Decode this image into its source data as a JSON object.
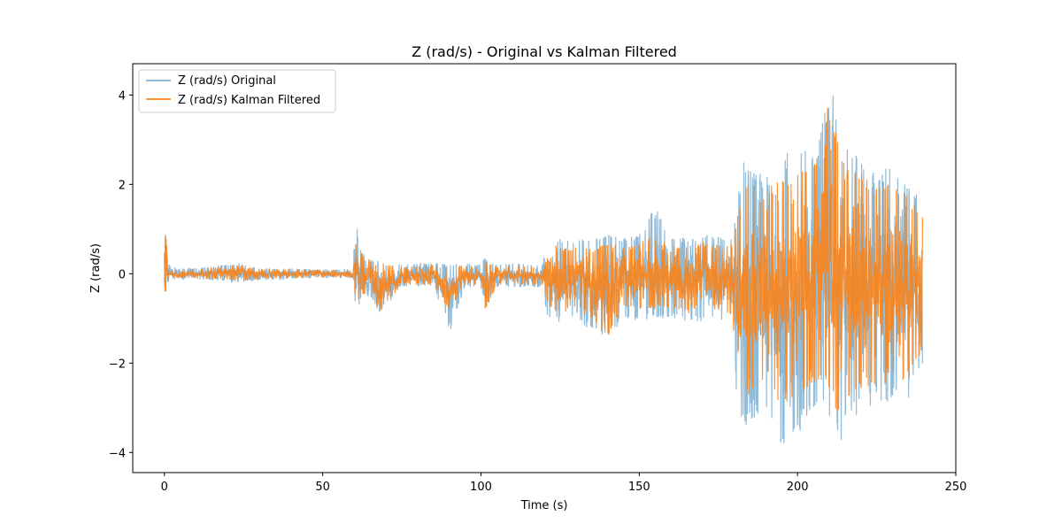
{
  "chart_data": {
    "type": "line",
    "title": "Z (rad/s) - Original vs Kalman Filtered",
    "xlabel": "Time (s)",
    "ylabel": "Z (rad/s)",
    "xlim": [
      -10,
      250
    ],
    "ylim": [
      -4.45,
      4.7
    ],
    "xticks": [
      0,
      50,
      100,
      150,
      200,
      250
    ],
    "xtick_labels": [
      "0",
      "50",
      "100",
      "150",
      "200",
      "250"
    ],
    "yticks": [
      -4,
      -2,
      0,
      2,
      4
    ],
    "ytick_labels": [
      "−4",
      "−2",
      "0",
      "2",
      "4"
    ],
    "grid": false,
    "legend": "top-left",
    "series": [
      {
        "name": "Z (rad/s) Original",
        "color": "#1f77b4",
        "opacity": 0.5,
        "envelope": {
          "x": [
            0,
            0.5,
            1,
            2,
            10,
            24,
            30,
            40,
            50,
            55,
            59.5,
            60.5,
            61.5,
            65,
            68,
            75,
            85,
            90,
            95,
            100,
            101,
            105,
            110,
            115,
            119.5,
            121,
            125,
            130,
            135,
            140,
            145,
            150,
            155,
            160,
            165,
            170,
            175,
            179.5,
            181,
            183,
            185,
            190,
            195,
            200,
            205,
            210,
            213,
            215,
            220,
            225,
            230,
            235,
            239.5
          ],
          "upper": [
            0.6,
            1.2,
            0.3,
            0.12,
            0.12,
            0.25,
            0.12,
            0.12,
            0.1,
            0.1,
            0.1,
            1.25,
            0.6,
            0.35,
            0.3,
            0.2,
            0.25,
            0.2,
            0.25,
            0.2,
            0.35,
            0.2,
            0.25,
            0.2,
            0.2,
            1.0,
            0.8,
            0.8,
            0.75,
            0.9,
            0.8,
            0.9,
            1.5,
            0.85,
            0.8,
            0.9,
            0.85,
            0.9,
            1.7,
            2.5,
            2.5,
            2.2,
            2.6,
            2.9,
            2.6,
            4.25,
            3.6,
            2.8,
            2.7,
            2.3,
            2.5,
            2.1,
            1.6
          ],
          "lower": [
            -0.6,
            -0.5,
            -0.2,
            -0.12,
            -0.12,
            -0.2,
            -0.15,
            -0.12,
            -0.1,
            -0.1,
            -0.1,
            -0.9,
            -0.8,
            -0.5,
            -0.9,
            -0.3,
            -0.3,
            -1.35,
            -0.3,
            -0.3,
            -0.95,
            -0.3,
            -0.3,
            -0.3,
            -0.3,
            -1.0,
            -1.1,
            -1.0,
            -1.3,
            -1.5,
            -1.0,
            -1.1,
            -1.0,
            -1.0,
            -1.1,
            -1.1,
            -1.0,
            -1.2,
            -3.2,
            -3.5,
            -3.4,
            -3.1,
            -3.9,
            -3.6,
            -3.2,
            -3.2,
            -4.0,
            -3.4,
            -3.1,
            -2.9,
            -2.9,
            -2.8,
            -2.2
          ]
        }
      },
      {
        "name": "Z (rad/s) Kalman Filtered",
        "color": "#ff7f0e",
        "opacity": 0.85,
        "envelope": {
          "x": [
            0,
            0.5,
            1,
            2,
            10,
            24,
            30,
            40,
            50,
            55,
            59.5,
            60.5,
            61.5,
            65,
            68,
            75,
            85,
            90,
            95,
            100,
            101,
            105,
            110,
            115,
            119.5,
            121,
            125,
            130,
            135,
            140,
            145,
            150,
            155,
            160,
            165,
            170,
            175,
            179.5,
            181,
            183,
            185,
            190,
            195,
            200,
            205,
            210,
            213,
            215,
            220,
            225,
            230,
            235,
            239.5
          ],
          "upper": [
            0.5,
            1.0,
            0.25,
            0.1,
            0.1,
            0.2,
            0.1,
            0.1,
            0.08,
            0.08,
            0.08,
            1.0,
            0.5,
            0.3,
            0.25,
            0.15,
            0.2,
            0.15,
            0.2,
            0.15,
            0.3,
            0.15,
            0.2,
            0.15,
            0.15,
            0.8,
            0.6,
            0.6,
            0.55,
            0.7,
            0.6,
            0.7,
            0.9,
            0.65,
            0.6,
            0.7,
            0.65,
            0.7,
            1.4,
            2.1,
            2.1,
            1.9,
            2.2,
            2.4,
            2.3,
            4.1,
            3.0,
            2.4,
            2.3,
            2.0,
            2.2,
            1.8,
            1.4
          ],
          "lower": [
            -0.5,
            -0.4,
            -0.15,
            -0.1,
            -0.1,
            -0.15,
            -0.12,
            -0.1,
            -0.08,
            -0.08,
            -0.08,
            -0.75,
            -0.6,
            -0.4,
            -0.9,
            -0.25,
            -0.25,
            -0.85,
            -0.25,
            -0.25,
            -0.9,
            -0.25,
            -0.25,
            -0.25,
            -0.25,
            -0.8,
            -0.9,
            -0.8,
            -1.0,
            -1.5,
            -0.8,
            -0.9,
            -0.8,
            -0.8,
            -0.9,
            -0.9,
            -0.8,
            -1.0,
            -2.6,
            -2.9,
            -2.8,
            -2.7,
            -3.0,
            -3.0,
            -2.6,
            -2.7,
            -3.2,
            -2.8,
            -2.6,
            -2.5,
            -2.5,
            -2.4,
            -1.8
          ]
        }
      }
    ]
  }
}
